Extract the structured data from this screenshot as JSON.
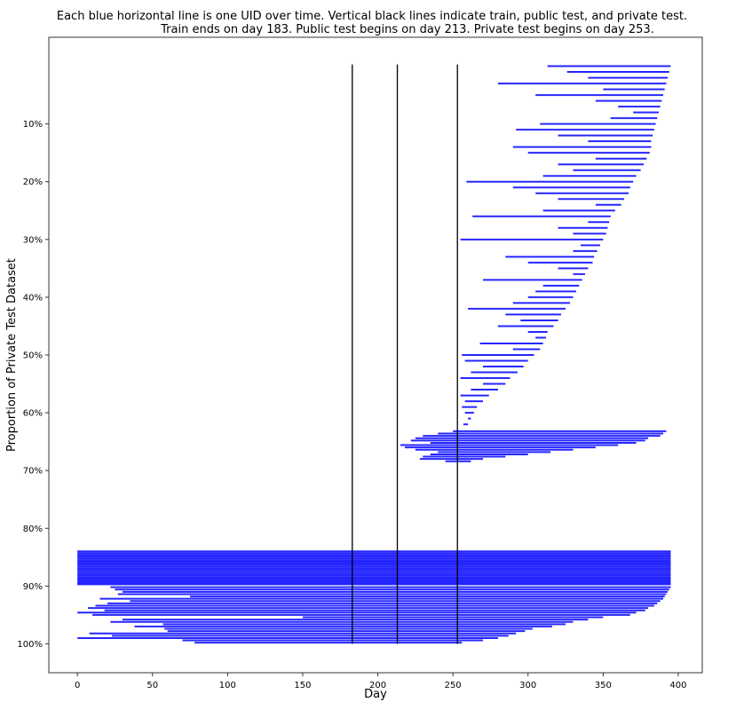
{
  "chart_data": {
    "type": "line",
    "title_lines": [
      "Each blue horizontal line is one UID over time. Vertical black lines indicate train, public test, and private test.",
      "Train ends on day 183. Public test begins on day 213. Private test begins on day 253."
    ],
    "xlabel": "Day",
    "ylabel": "Proportion of Private Test Dataset",
    "xlim": [
      -19,
      416
    ],
    "ylim": [
      105,
      -5
    ],
    "y_inverted": true,
    "xticks": [
      0,
      50,
      100,
      150,
      200,
      250,
      300,
      350,
      400
    ],
    "yticks": [
      10,
      20,
      30,
      40,
      50,
      60,
      70,
      80,
      90,
      100
    ],
    "ytick_labels": [
      "10%",
      "20%",
      "30%",
      "40%",
      "50%",
      "60%",
      "70%",
      "80%",
      "90%",
      "100%"
    ],
    "grid": false,
    "series_color": "#0000ff",
    "vline_color": "#000000",
    "vlines": [
      183,
      213,
      253
    ],
    "vline_yrange": [
      -0.3,
      100
    ],
    "segments_format": [
      "proportion_percent",
      "start_day",
      "end_day"
    ],
    "segments": [
      [
        0,
        313,
        395
      ],
      [
        1,
        326,
        394
      ],
      [
        2,
        340,
        393
      ],
      [
        3,
        280,
        392
      ],
      [
        4,
        350,
        391
      ],
      [
        5,
        305,
        390
      ],
      [
        6,
        345,
        389
      ],
      [
        7,
        360,
        388
      ],
      [
        8,
        370,
        387
      ],
      [
        9,
        355,
        386
      ],
      [
        10,
        308,
        385
      ],
      [
        11,
        292,
        384
      ],
      [
        12,
        320,
        383
      ],
      [
        13,
        340,
        382
      ],
      [
        14,
        290,
        382
      ],
      [
        15,
        300,
        381
      ],
      [
        16,
        345,
        379
      ],
      [
        17,
        320,
        377
      ],
      [
        18,
        330,
        375
      ],
      [
        19,
        310,
        372
      ],
      [
        20,
        259,
        370
      ],
      [
        21,
        290,
        368
      ],
      [
        22,
        305,
        367
      ],
      [
        23,
        320,
        364
      ],
      [
        24,
        345,
        362
      ],
      [
        25,
        310,
        358
      ],
      [
        26,
        263,
        355
      ],
      [
        27,
        340,
        354
      ],
      [
        28,
        320,
        353
      ],
      [
        29,
        330,
        352
      ],
      [
        30,
        255,
        350
      ],
      [
        31,
        335,
        348
      ],
      [
        32,
        330,
        346
      ],
      [
        33,
        285,
        344
      ],
      [
        34,
        300,
        343
      ],
      [
        35,
        320,
        340
      ],
      [
        36,
        330,
        338
      ],
      [
        37,
        270,
        336
      ],
      [
        38,
        310,
        334
      ],
      [
        39,
        305,
        332
      ],
      [
        40,
        300,
        330
      ],
      [
        41,
        290,
        328
      ],
      [
        42,
        260,
        325
      ],
      [
        43,
        285,
        322
      ],
      [
        44,
        295,
        320
      ],
      [
        45,
        280,
        317
      ],
      [
        46,
        300,
        313
      ],
      [
        47,
        305,
        312
      ],
      [
        48,
        268,
        310
      ],
      [
        49,
        290,
        308
      ],
      [
        50,
        256,
        304
      ],
      [
        51,
        258,
        300
      ],
      [
        52,
        270,
        297
      ],
      [
        53,
        262,
        293
      ],
      [
        54,
        255,
        288
      ],
      [
        55,
        270,
        285
      ],
      [
        56,
        262,
        280
      ],
      [
        57,
        255,
        274
      ],
      [
        58,
        258,
        270
      ],
      [
        59,
        256,
        266
      ],
      [
        60,
        258,
        264
      ],
      [
        61,
        260,
        262
      ],
      [
        62,
        257,
        260
      ],
      [
        63.2,
        250,
        392
      ],
      [
        63.6,
        240,
        390
      ],
      [
        64,
        230,
        388
      ],
      [
        64.4,
        225,
        380
      ],
      [
        64.8,
        222,
        378
      ],
      [
        65.2,
        235,
        372
      ],
      [
        65.6,
        215,
        360
      ],
      [
        66,
        218,
        345
      ],
      [
        66.4,
        225,
        330
      ],
      [
        66.8,
        240,
        315
      ],
      [
        67.2,
        235,
        300
      ],
      [
        67.6,
        230,
        285
      ],
      [
        68,
        228,
        270
      ],
      [
        68.4,
        245,
        262
      ],
      [
        84,
        0,
        395
      ],
      [
        84.3,
        0,
        395
      ],
      [
        84.6,
        0,
        395
      ],
      [
        84.9,
        0,
        395
      ],
      [
        85.2,
        0,
        395
      ],
      [
        85.5,
        0,
        395
      ],
      [
        85.8,
        0,
        395
      ],
      [
        86.1,
        0,
        395
      ],
      [
        86.4,
        0,
        395
      ],
      [
        86.7,
        0,
        395
      ],
      [
        87,
        0,
        395
      ],
      [
        87.3,
        0,
        395
      ],
      [
        87.6,
        0,
        395
      ],
      [
        87.9,
        0,
        395
      ],
      [
        88.2,
        0,
        395
      ],
      [
        88.5,
        0,
        395
      ],
      [
        88.8,
        0,
        395
      ],
      [
        89.1,
        0,
        395
      ],
      [
        89.4,
        0,
        395
      ],
      [
        89.7,
        0,
        395
      ],
      [
        90.2,
        22,
        395
      ],
      [
        90.6,
        25,
        394
      ],
      [
        91,
        30,
        393
      ],
      [
        91.4,
        27,
        392
      ],
      [
        91.8,
        75,
        391
      ],
      [
        92.2,
        15,
        390
      ],
      [
        92.6,
        35,
        388
      ],
      [
        93,
        20,
        386
      ],
      [
        93.4,
        12,
        384
      ],
      [
        93.8,
        7,
        380
      ],
      [
        94.2,
        18,
        378
      ],
      [
        94.6,
        0,
        372
      ],
      [
        95,
        10,
        368
      ],
      [
        95.4,
        150,
        350
      ],
      [
        95.8,
        30,
        340
      ],
      [
        96.2,
        22,
        330
      ],
      [
        96.6,
        57,
        325
      ],
      [
        97,
        38,
        316
      ],
      [
        97.4,
        58,
        303
      ],
      [
        97.8,
        60,
        298
      ],
      [
        98.2,
        8,
        292
      ],
      [
        98.6,
        23,
        287
      ],
      [
        99,
        0,
        280
      ],
      [
        99.4,
        70,
        270
      ],
      [
        99.8,
        78,
        256
      ]
    ]
  }
}
